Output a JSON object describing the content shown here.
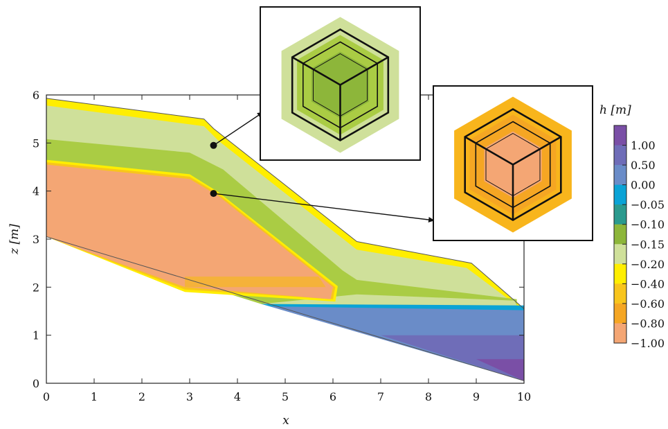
{
  "chart_data": {
    "type": "heatmap",
    "xlabel": "x",
    "ylabel": "z [m]",
    "xlim": [
      0,
      10
    ],
    "ylim": [
      0,
      6
    ],
    "xticks": [
      "0",
      "1",
      "2",
      "3",
      "4",
      "5",
      "6",
      "7",
      "8",
      "9",
      "10"
    ],
    "yticks": [
      "0",
      "1",
      "2",
      "3",
      "4",
      "5",
      "6"
    ],
    "colorbar": {
      "title": "h [m]",
      "labels": [
        "1.00",
        "0.50",
        "0.00",
        "−0.05",
        "−0.10",
        "−0.15",
        "−0.20",
        "−0.40",
        "−0.60",
        "−0.80",
        "−1.00"
      ],
      "colors": [
        "#7a4fa6",
        "#6f6db8",
        "#6a8cc8",
        "#0aa3d6",
        "#2b9a8e",
        "#8db63a",
        "#cfe09a",
        "#ffee00",
        "#f8c51c",
        "#f5a623",
        "#f4a674"
      ]
    },
    "domain_outline": [
      [
        0,
        5.93
      ],
      [
        3.3,
        5.5
      ],
      [
        3.5,
        5.3
      ],
      [
        6.5,
        2.95
      ],
      [
        8.9,
        2.5
      ],
      [
        10,
        1.55
      ],
      [
        10,
        0.05
      ],
      [
        0,
        3.05
      ]
    ],
    "regions": [
      {
        "name": "saturated",
        "h_range": [
          0.0,
          1.0
        ],
        "color": "#6a8cc8",
        "polygon": [
          [
            4.5,
            1.65
          ],
          [
            10,
            1.55
          ],
          [
            10,
            0.05
          ]
        ]
      },
      {
        "name": "strip",
        "h_range": [
          0.0,
          -0.05
        ],
        "color": "#0aa3d6",
        "polygon": [
          [
            4.5,
            1.65
          ],
          [
            10,
            1.62
          ],
          [
            10,
            1.52
          ],
          [
            4.7,
            1.6
          ]
        ]
      },
      {
        "name": "dry-core",
        "h": -1.0,
        "color": "#f4a674",
        "polygon": [
          [
            0,
            4.55
          ],
          [
            3.0,
            4.25
          ],
          [
            3.6,
            3.9
          ],
          [
            6.0,
            2.0
          ],
          [
            5.95,
            1.75
          ],
          [
            2.9,
            2.0
          ],
          [
            0,
            3.05
          ]
        ]
      }
    ],
    "sample_points": [
      {
        "x": 3.5,
        "z": 4.95,
        "inset": "upper"
      },
      {
        "x": 3.5,
        "z": 3.95,
        "inset": "lower"
      }
    ],
    "insets": [
      {
        "name": "upper",
        "colors": [
          "#cfe09a",
          "#aacc44",
          "#8db63a"
        ]
      },
      {
        "name": "lower",
        "colors": [
          "#f8b51c",
          "#f5a623",
          "#f4a674"
        ]
      }
    ]
  }
}
